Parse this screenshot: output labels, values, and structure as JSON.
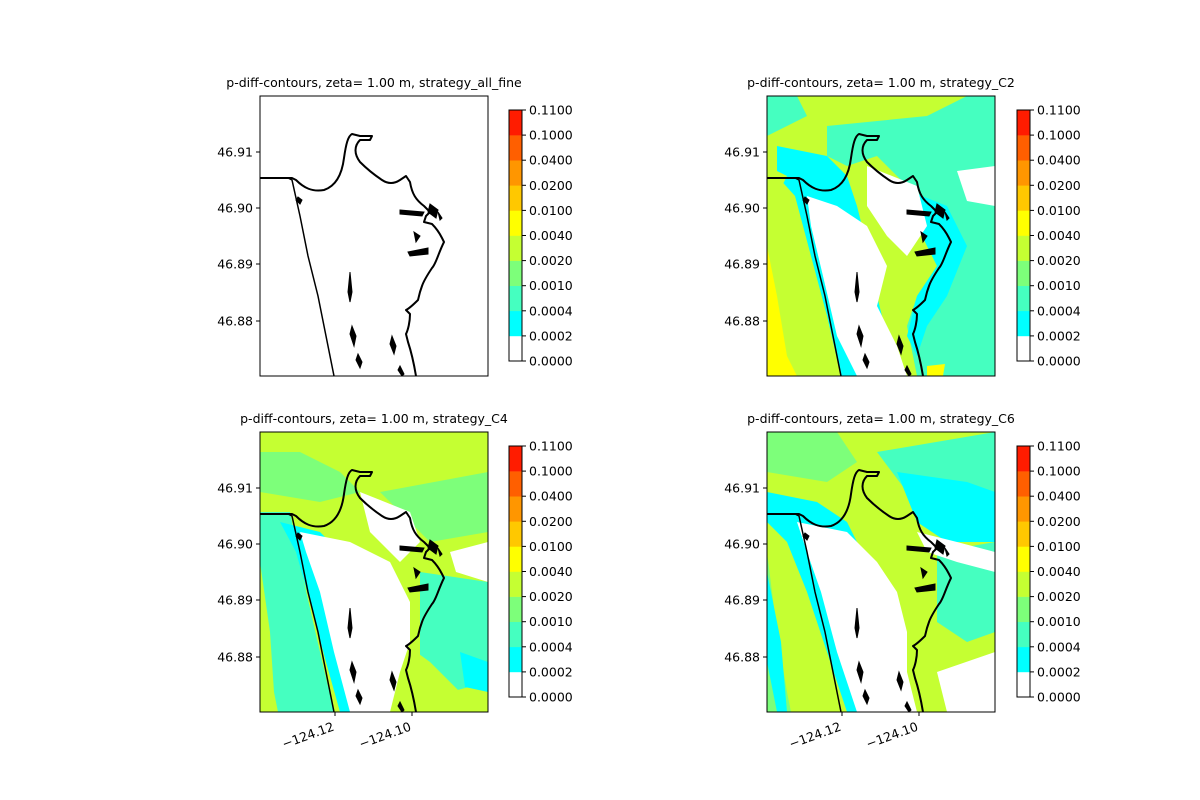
{
  "chart_data": [
    {
      "type": "heatmap",
      "title": "p-diff-contours, zeta= 1.00 m, strategy_all_fine",
      "y_ticks": [
        "46.91",
        "46.90",
        "46.89",
        "46.88"
      ],
      "x_ticks": [],
      "ylim": [
        46.8705,
        46.9195
      ],
      "xlim": [
        -124.1395,
        -124.0895
      ],
      "fill": "none"
    },
    {
      "type": "heatmap",
      "title": "p-diff-contours, zeta= 1.00 m, strategy_C2",
      "y_ticks": [
        "46.91",
        "46.90",
        "46.89",
        "46.88"
      ],
      "x_ticks": [],
      "ylim": [
        46.8705,
        46.9195
      ],
      "xlim": [
        -124.1395,
        -124.0895
      ],
      "fill": "C2"
    },
    {
      "type": "heatmap",
      "title": "p-diff-contours, zeta= 1.00 m, strategy_C4",
      "y_ticks": [
        "46.91",
        "46.90",
        "46.89",
        "46.88"
      ],
      "x_ticks": [
        "−124.12",
        "−124.10"
      ],
      "ylim": [
        46.8705,
        46.9195
      ],
      "xlim": [
        -124.1395,
        -124.0895
      ],
      "fill": "C4"
    },
    {
      "type": "heatmap",
      "title": "p-diff-contours, zeta= 1.00 m, strategy_C6",
      "y_ticks": [
        "46.91",
        "46.90",
        "46.89",
        "46.88"
      ],
      "x_ticks": [
        "−124.12",
        "−124.10"
      ],
      "ylim": [
        46.8705,
        46.9195
      ],
      "xlim": [
        -124.1395,
        -124.0895
      ],
      "fill": "C6"
    }
  ],
  "colorbar": {
    "levels": [
      "0.0000",
      "0.0002",
      "0.0004",
      "0.0010",
      "0.0020",
      "0.0040",
      "0.0100",
      "0.0200",
      "0.0400",
      "0.1000",
      "0.1100"
    ],
    "colors": [
      "#ffffff",
      "#00ffff",
      "#45ffc0",
      "#7dff7a",
      "#c5ff32",
      "#ffff00",
      "#ffc800",
      "#ff9600",
      "#ff5f00",
      "#ff1c00"
    ]
  }
}
